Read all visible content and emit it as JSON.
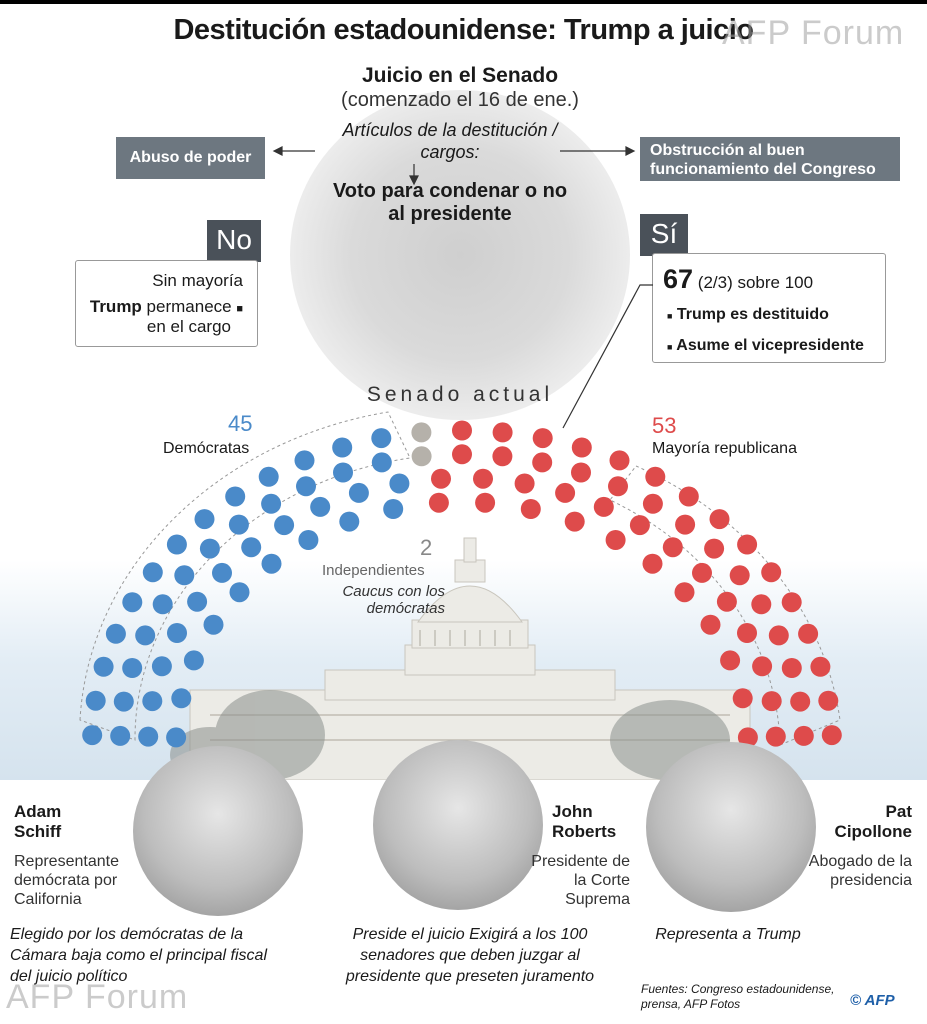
{
  "title": "Destitución estadounidense: Trump a juicio",
  "watermark": "AFP Forum",
  "trial": {
    "heading": "Juicio en el Senado",
    "subheading": "(comenzado el 16 de ene.)",
    "articles": "Artículos de la destitución / cargos:",
    "vote": "Voto para condenar o no al presidente"
  },
  "charges": {
    "left": "Abuso de poder",
    "right": "Obstrucción al buen funcionamiento del Congreso"
  },
  "no": {
    "label": "No",
    "line1": "Sin mayoría",
    "line2_bold": "Trump",
    "line2_rest": " permanece",
    "line3": "en el cargo"
  },
  "yes": {
    "label": "Sí",
    "number": "67",
    "fraction": "(2/3) sobre 100",
    "item1": "Trump es destituido",
    "item2": "Asume el vicepresidente"
  },
  "senate": {
    "label": "Senado actual",
    "dem_count": "45",
    "dem_label": "Demócratas",
    "rep_count": "53",
    "rep_label": "Mayoría republicana",
    "ind_count": "2",
    "ind_label": "Independientes",
    "ind_note": "Caucus con los demócratas",
    "seats": {
      "democrats": 45,
      "independents": 2,
      "republicans": 53
    },
    "colors": {
      "democrats": "#4a8ac9",
      "independents": "#b5b1aa",
      "republicans": "#de4b4b"
    }
  },
  "people": [
    {
      "name": "Adam Schiff",
      "role": "Representante demócrata por California",
      "desc": "Elegido por los demócratas de la Cámara baja como el principal fiscal del juicio político"
    },
    {
      "name": "John Roberts",
      "role": "Presidente de la Corte Suprema",
      "desc": "Preside el juicio Exigirá a los 100 senadores que deben juzgar al presidente que preseten juramento"
    },
    {
      "name": "Pat Cipollone",
      "role": "Abogado de la presidencia",
      "desc": "Representa a Trump"
    }
  ],
  "sources": "Fuentes: Congreso estadounidense, prensa, AFP Fotos",
  "credit": "© AFP"
}
